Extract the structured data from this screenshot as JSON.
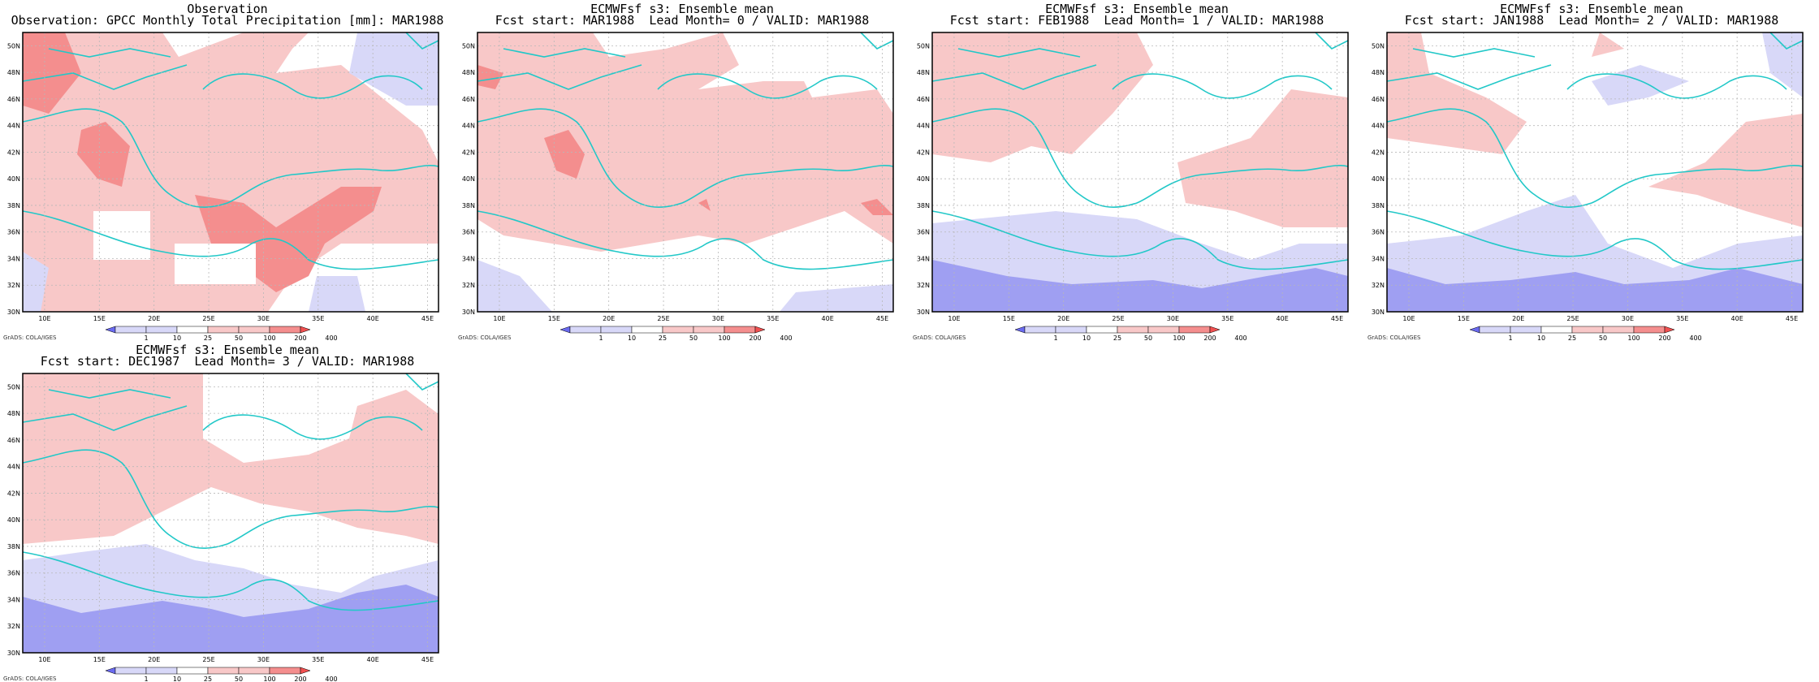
{
  "panels": [
    {
      "title_line1": "Observation",
      "title_line2": "Observation: GPCC Monthly Total Precipitation [mm]: MAR1988",
      "credit": "GrADS: COLA/IGES"
    },
    {
      "title_line1": "ECMWFsf s3: Ensemble mean",
      "title_line2": "Fcst start: MAR1988  Lead Month= 0 / VALID: MAR1988",
      "credit": "GrADS: COLA/IGES"
    },
    {
      "title_line1": "ECMWFsf s3: Ensemble mean",
      "title_line2": "Fcst start: FEB1988  Lead Month= 1 / VALID: MAR1988",
      "credit": "GrADS: COLA/IGES"
    },
    {
      "title_line1": "ECMWFsf s3: Ensemble mean",
      "title_line2": "Fcst start: JAN1988  Lead Month= 2 / VALID: MAR1988",
      "credit": "GrADS: COLA/IGES"
    },
    {
      "title_line1": "ECMWFsf s3: Ensemble mean",
      "title_line2": "Fcst start: DEC1987  Lead Month= 3 / VALID: MAR1988",
      "credit": "GrADS: COLA/IGES"
    }
  ],
  "lat_labels": [
    "50N",
    "48N",
    "46N",
    "44N",
    "42N",
    "40N",
    "38N",
    "36N",
    "34N",
    "32N",
    "30N"
  ],
  "lon_labels": [
    "10E",
    "15E",
    "20E",
    "25E",
    "30E",
    "35E",
    "40E",
    "45E"
  ],
  "colorbar_labels": [
    "1",
    "10",
    "25",
    "50",
    "100",
    "200",
    "400"
  ],
  "colors": {
    "blue_dark": "#9f9ff2",
    "blue_light": "#d8d8f8",
    "pink_light": "#f8c8c8",
    "red_mid": "#f48e8e",
    "coast": "#22c8c8",
    "grid": "#b8b8b8"
  }
}
